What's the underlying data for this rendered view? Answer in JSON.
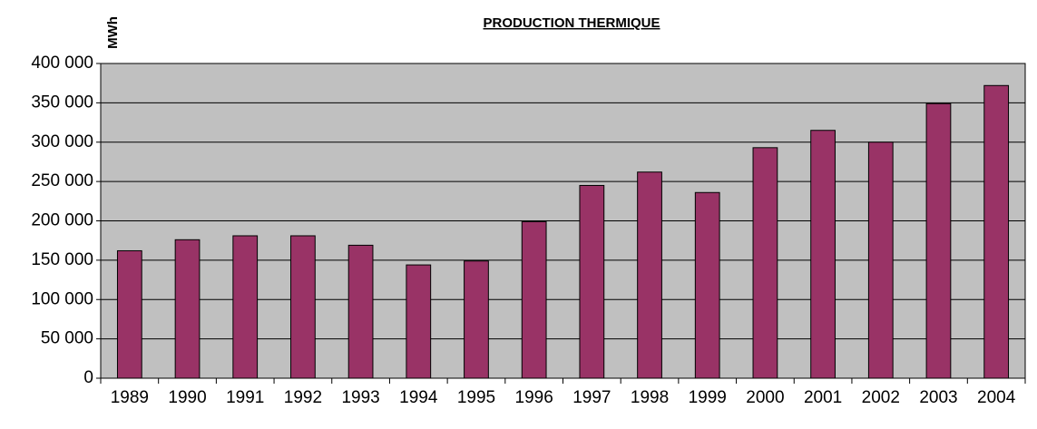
{
  "chart_data": {
    "type": "bar",
    "title": "PRODUCTION THERMIQUE",
    "y_label": "MWh",
    "categories": [
      "1989",
      "1990",
      "1991",
      "1992",
      "1993",
      "1994",
      "1995",
      "1996",
      "1997",
      "1998",
      "1999",
      "2000",
      "2001",
      "2002",
      "2003",
      "2004"
    ],
    "values": [
      162000,
      176000,
      181000,
      181000,
      169000,
      144000,
      149000,
      199000,
      245000,
      262000,
      236000,
      293000,
      315000,
      300000,
      349000,
      372000
    ],
    "color": "#993366",
    "plot_background": "#c0c0c0",
    "ylim": [
      0,
      400000
    ],
    "yticks": [
      0,
      {
        "value": 50000,
        "label": "50 000"
      },
      {
        "value": 100000,
        "label": "100 000"
      },
      {
        "value": 150000,
        "label": "150 000"
      },
      {
        "value": 200000,
        "label": "200 000"
      },
      {
        "value": 250000,
        "label": "250 000"
      },
      {
        "value": 300000,
        "label": "300 000"
      },
      {
        "value": 350000,
        "label": "350 000"
      },
      {
        "value": 400000,
        "label": "400 000"
      }
    ],
    "grid": true
  }
}
